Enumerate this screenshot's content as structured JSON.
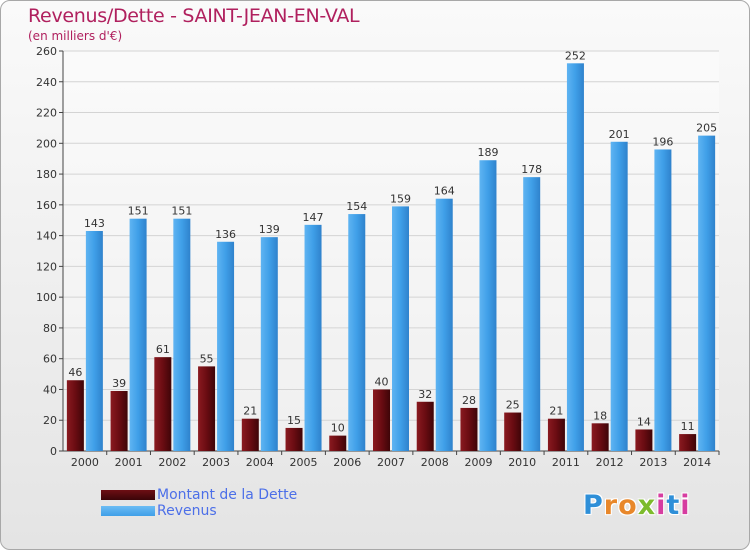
{
  "header": {
    "title": "Revenus/Dette - SAINT-JEAN-EN-VAL",
    "subtitle": "(en milliers d'€)"
  },
  "chart_data": {
    "type": "bar",
    "title": "Revenus/Dette - SAINT-JEAN-EN-VAL",
    "ylabel": "(en milliers d'€)",
    "categories": [
      "2000",
      "2001",
      "2002",
      "2003",
      "2004",
      "2005",
      "2006",
      "2007",
      "2008",
      "2009",
      "2010",
      "2011",
      "2012",
      "2013",
      "2014"
    ],
    "series": [
      {
        "name": "Montant de la Dette",
        "color": "#7a1218",
        "values": [
          46,
          39,
          61,
          55,
          21,
          15,
          10,
          40,
          32,
          28,
          25,
          21,
          18,
          14,
          11
        ]
      },
      {
        "name": "Revenus",
        "color": "#3f9fe8",
        "values": [
          143,
          151,
          151,
          136,
          139,
          147,
          154,
          159,
          164,
          189,
          178,
          252,
          201,
          196,
          205
        ]
      }
    ],
    "ylim": [
      0,
      260
    ],
    "yticks": [
      0,
      20,
      40,
      60,
      80,
      100,
      120,
      140,
      160,
      180,
      200,
      220,
      240,
      260
    ],
    "grid": true,
    "legend": "bottom-left"
  },
  "legend": {
    "items": [
      {
        "label": "Montant de la Dette",
        "color": "#6e0f14"
      },
      {
        "label": "Revenus",
        "color": "#3f9fe8"
      }
    ]
  },
  "logo": {
    "letters": [
      {
        "ch": "P",
        "color": "#2e8fd8"
      },
      {
        "ch": "r",
        "color": "#e8872a"
      },
      {
        "ch": "o",
        "color": "#e8872a"
      },
      {
        "ch": "x",
        "color": "#7dbb2c"
      },
      {
        "ch": "i",
        "color": "#d63ca0"
      },
      {
        "ch": "t",
        "color": "#2e8fd8"
      },
      {
        "ch": "i",
        "color": "#d63ca0"
      }
    ]
  }
}
